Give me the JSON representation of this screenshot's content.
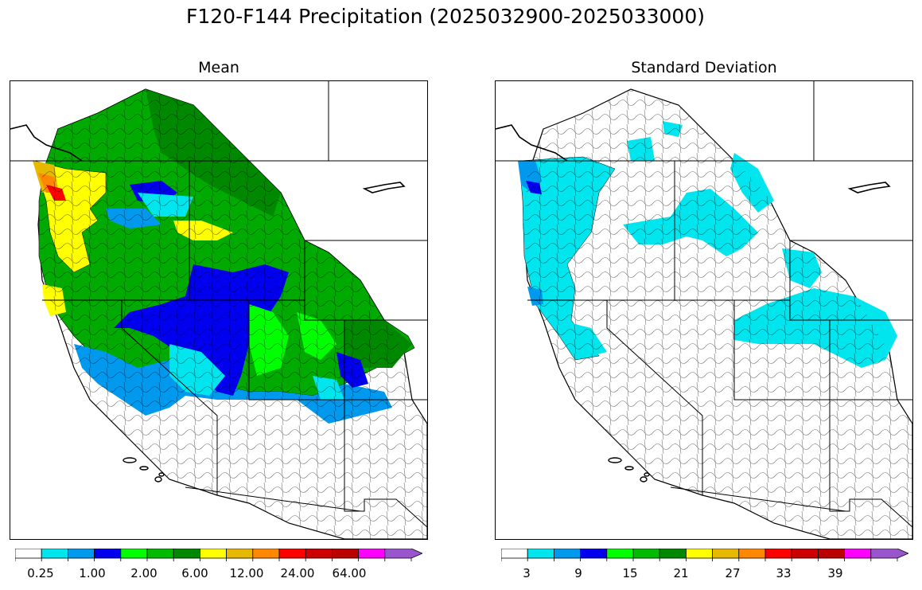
{
  "figure": {
    "title": "F120-F144 Precipitation (2025032900-2025033000)"
  },
  "panels": [
    {
      "title": "Mean",
      "colorbar": {
        "colors": [
          "#ffffff",
          "#00e5ee",
          "#0099ee",
          "#0000ee",
          "#00ff00",
          "#00bb00",
          "#008800",
          "#ffff00",
          "#e6b800",
          "#ff8800",
          "#ff0000",
          "#cc0000",
          "#bb0000",
          "#ff00ff",
          "#9955cc"
        ],
        "tick_labels": [
          "0.25",
          "1.00",
          "2.00",
          "6.00",
          "12.00",
          "24.00",
          "64.00"
        ],
        "extend": "max"
      }
    },
    {
      "title": "Standard Deviation",
      "colorbar": {
        "colors": [
          "#ffffff",
          "#00e5ee",
          "#0099ee",
          "#0000ee",
          "#00ff00",
          "#00bb00",
          "#008800",
          "#ffff00",
          "#e6b800",
          "#ff8800",
          "#ff0000",
          "#cc0000",
          "#bb0000",
          "#ff00ff",
          "#9955cc"
        ],
        "tick_labels": [
          "3",
          "9",
          "15",
          "21",
          "27",
          "33",
          "39"
        ],
        "extend": "max"
      }
    }
  ]
}
